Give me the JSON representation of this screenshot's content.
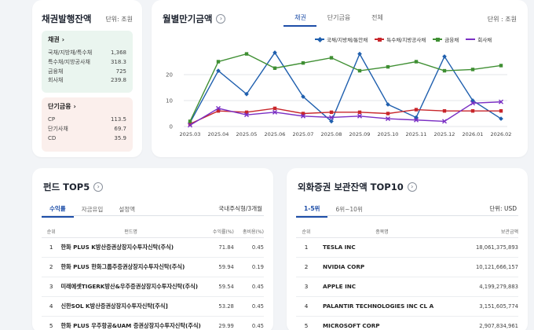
{
  "issuance": {
    "title": "채권발행잔액",
    "unit": "단위: 조원",
    "bonds": {
      "title": "채권",
      "items": [
        {
          "label": "국채/지방채/특수채",
          "value": "1,368"
        },
        {
          "label": "특수채/지방공사채",
          "value": "318.3"
        },
        {
          "label": "금융채",
          "value": "725"
        },
        {
          "label": "회사채",
          "value": "239.8"
        }
      ]
    },
    "short": {
      "title": "단기금융",
      "items": [
        {
          "label": "CP",
          "value": "113.5"
        },
        {
          "label": "단기사채",
          "value": "69.7"
        },
        {
          "label": "CD",
          "value": "35.9"
        }
      ]
    }
  },
  "monthly": {
    "title": "월별만기금액",
    "tabs": [
      "채권",
      "단기금융",
      "전체"
    ],
    "unit": "단위 : 조원"
  },
  "chart_data": {
    "type": "line",
    "categories": [
      "2025.03",
      "2025.04",
      "2025.05",
      "2025.06",
      "2025.07",
      "2025.08",
      "2025.09",
      "2025.10",
      "2025.11",
      "2025.12",
      "2026.01",
      "2026.02"
    ],
    "yticks": [
      0,
      10,
      20
    ],
    "ylim": [
      0,
      30
    ],
    "grid": true,
    "legend": "top",
    "series": [
      {
        "name": "국채/지방채/통안채",
        "color": "#1f5fae",
        "marker": "diamond",
        "values": [
          1.5,
          21.5,
          12.5,
          28.5,
          11.5,
          2,
          28,
          8.5,
          3.5,
          27,
          10,
          3
        ]
      },
      {
        "name": "특수채/지방공사채",
        "color": "#c8262b",
        "marker": "square",
        "values": [
          1,
          6,
          5.5,
          7,
          5,
          5.5,
          5.5,
          5,
          6.5,
          6,
          6,
          6
        ]
      },
      {
        "name": "금융채",
        "color": "#3f8f33",
        "marker": "square",
        "values": [
          2,
          25,
          28,
          22.5,
          24.5,
          26.5,
          21.5,
          23,
          25,
          21.5,
          22,
          23.5
        ]
      },
      {
        "name": "회사채",
        "color": "#7a2fc4",
        "marker": "cross",
        "values": [
          0.5,
          7,
          4.5,
          5.5,
          4,
          3.5,
          4,
          3,
          2.5,
          2,
          9,
          9.5
        ]
      }
    ]
  },
  "fund": {
    "title": "펀드 TOP5",
    "tabs": [
      "수익률",
      "자금유입",
      "설정액"
    ],
    "note": "국내주식형/3개월",
    "headers": [
      "순위",
      "펀드명",
      "수익률(%)",
      "총비용(%)"
    ],
    "rows": [
      {
        "rank": "1",
        "name": "한화 PLUS K방산증권상장지수투자신탁(주식)",
        "ret": "71.84",
        "fee": "0.45"
      },
      {
        "rank": "2",
        "name": "한화 PLUS 한화그룹주증권상장지수투자신탁(주식)",
        "ret": "59.94",
        "fee": "0.19"
      },
      {
        "rank": "3",
        "name": "미래에셋TIGERK방산&우주증권상장지수투자신탁(주식)",
        "ret": "59.54",
        "fee": "0.45"
      },
      {
        "rank": "4",
        "name": "신한SOL K방산증권상장지수투자신탁[주식]",
        "ret": "53.28",
        "fee": "0.45"
      },
      {
        "rank": "5",
        "name": "한화 PLUS 우주항공&UAM 증권상장지수투자신탁(주식)",
        "ret": "29.99",
        "fee": "0.45"
      }
    ]
  },
  "foreign": {
    "title": "외화증권 보관잔액 TOP10",
    "tabs": [
      "1-5위",
      "6위~10위"
    ],
    "unit": "단위: USD",
    "headers": [
      "순위",
      "종목명",
      "보관금액"
    ],
    "rows": [
      {
        "rank": "1",
        "name": "TESLA INC",
        "amount": "18,061,375,893"
      },
      {
        "rank": "2",
        "name": "NVIDIA CORP",
        "amount": "10,121,666,157"
      },
      {
        "rank": "3",
        "name": "APPLE INC",
        "amount": "4,199,279,883"
      },
      {
        "rank": "4",
        "name": "PALANTIR TECHNOLOGIES INC CL A",
        "amount": "3,151,605,774"
      },
      {
        "rank": "5",
        "name": "MICROSOFT CORP",
        "amount": "2,907,834,961"
      }
    ]
  }
}
